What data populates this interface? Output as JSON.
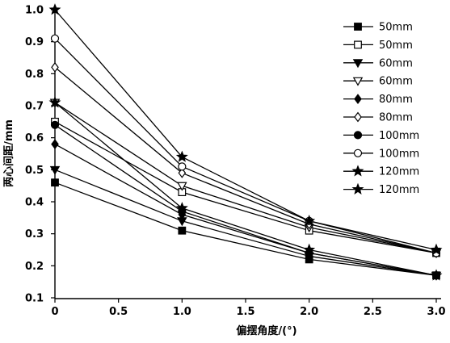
{
  "chart_data": {
    "type": "line",
    "xlabel": "偏摆角度/(°)",
    "ylabel": "两心间距/mm",
    "x": [
      0,
      1,
      2,
      3
    ],
    "xlim": [
      0,
      3.0
    ],
    "ylim": [
      0.1,
      1.0
    ],
    "xticks": [
      0,
      0.5,
      1.0,
      1.5,
      2.0,
      2.5,
      3.0
    ],
    "xtick_labels": [
      "0",
      "0.5",
      "1.0",
      "1.5",
      "2.0",
      "2.5",
      "3.0"
    ],
    "yticks": [
      0.1,
      0.2,
      0.3,
      0.4,
      0.5,
      0.6,
      0.7,
      0.8,
      0.9,
      1.0
    ],
    "ytick_labels": [
      "0.1",
      "0.2",
      "0.3",
      "0.4",
      "0.5",
      "0.6",
      "0.7",
      "0.8",
      "0.9",
      "1.0"
    ],
    "grid": false,
    "legend": "top-right",
    "colors": {
      "line": "#000000",
      "background": "#ffffff"
    },
    "series": [
      {
        "name": "50mm",
        "marker": "square",
        "filled": true,
        "values": [
          0.46,
          0.31,
          0.22,
          0.17
        ]
      },
      {
        "name": "50mm",
        "marker": "square",
        "filled": false,
        "values": [
          0.65,
          0.43,
          0.31,
          0.24
        ]
      },
      {
        "name": "60mm",
        "marker": "triangle-down",
        "filled": true,
        "values": [
          0.5,
          0.34,
          0.23,
          0.17
        ]
      },
      {
        "name": "60mm",
        "marker": "triangle-down",
        "filled": false,
        "values": [
          0.71,
          0.45,
          0.32,
          0.24
        ]
      },
      {
        "name": "80mm",
        "marker": "diamond",
        "filled": true,
        "values": [
          0.58,
          0.36,
          0.24,
          0.17
        ]
      },
      {
        "name": "80mm",
        "marker": "diamond",
        "filled": false,
        "values": [
          0.82,
          0.49,
          0.33,
          0.24
        ]
      },
      {
        "name": "100mm",
        "marker": "circle",
        "filled": true,
        "values": [
          0.64,
          0.37,
          0.24,
          0.17
        ]
      },
      {
        "name": "100mm",
        "marker": "circle",
        "filled": false,
        "values": [
          0.91,
          0.51,
          0.34,
          0.24
        ]
      },
      {
        "name": "120mm",
        "marker": "star",
        "filled": true,
        "values": [
          0.71,
          0.38,
          0.25,
          0.17
        ]
      },
      {
        "name": "120mm",
        "marker": "star",
        "filled": true,
        "values": [
          1.0,
          0.54,
          0.34,
          0.25
        ]
      }
    ]
  }
}
